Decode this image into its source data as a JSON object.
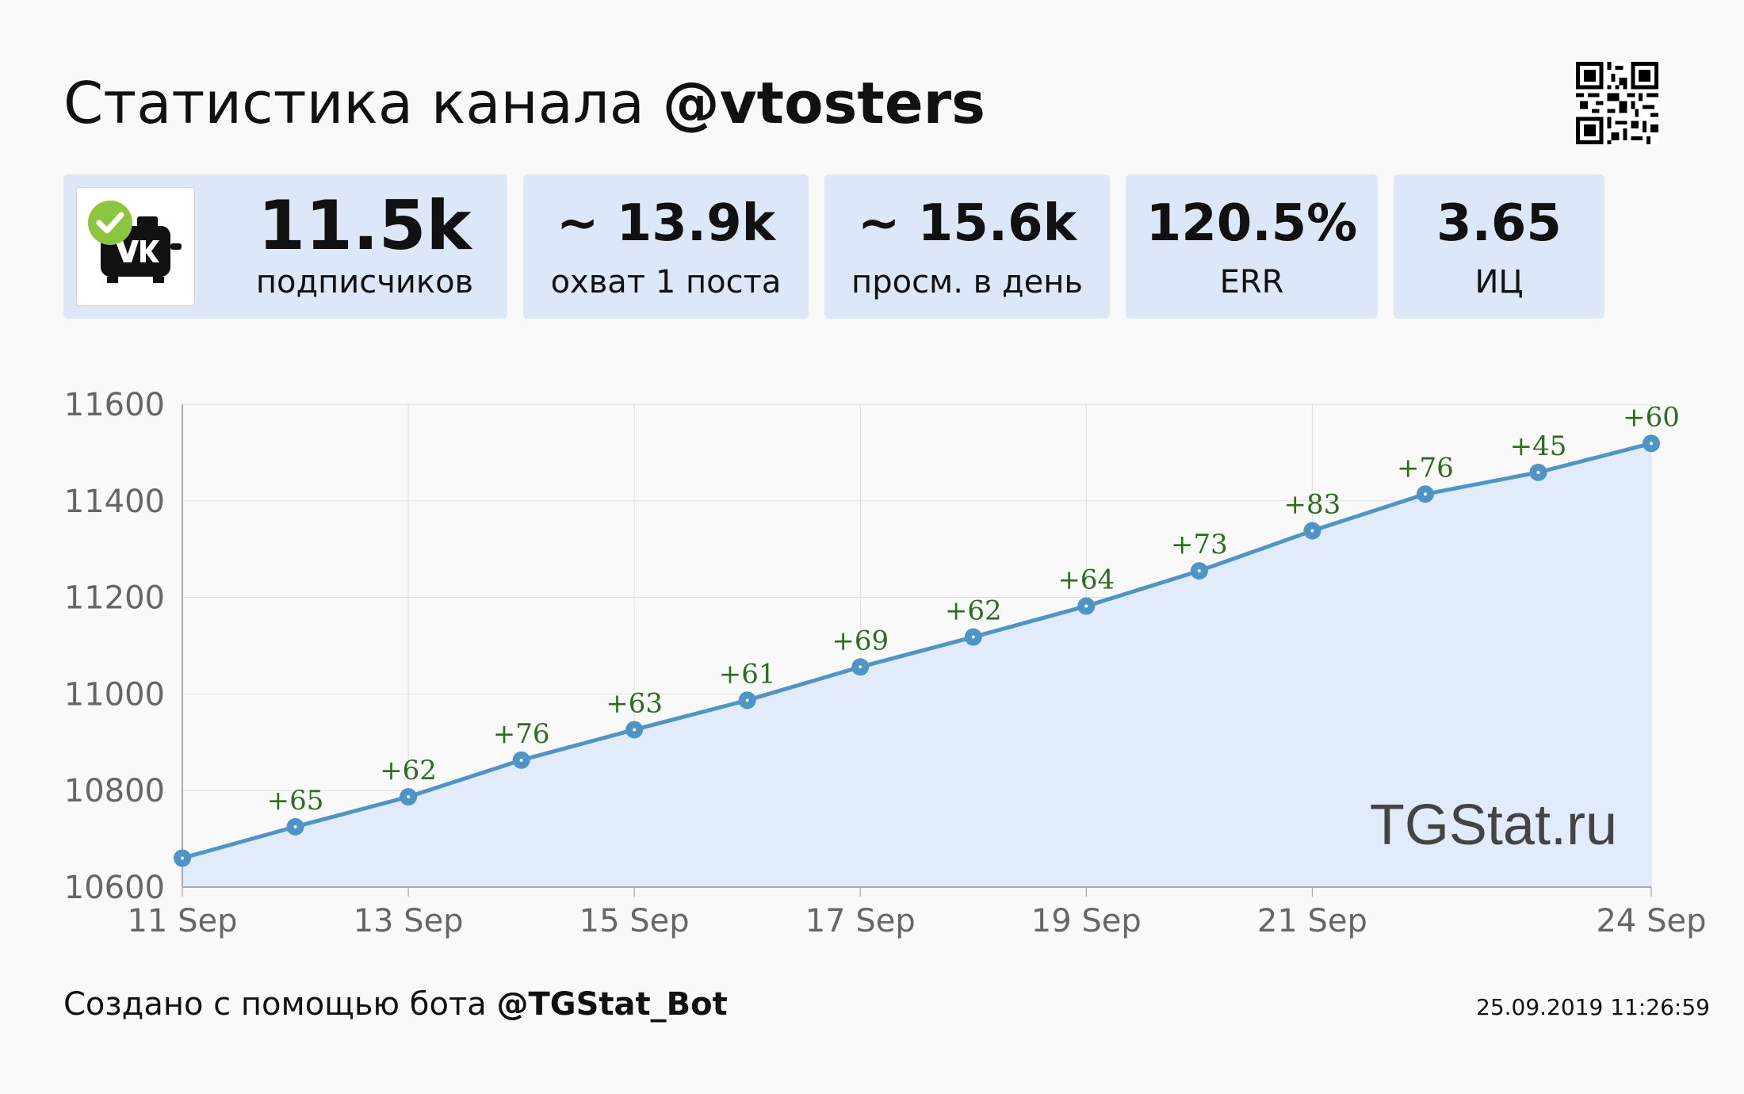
{
  "header": {
    "title_prefix": "Статистика канала",
    "channel": "@vtosters"
  },
  "stats": [
    {
      "value": "11.5k",
      "label": "подписчиков"
    },
    {
      "value": "~ 13.9k",
      "label": "охват 1 поста"
    },
    {
      "value": "~ 15.6k",
      "label": "просм. в день"
    },
    {
      "value": "120.5%",
      "label": "ERR"
    },
    {
      "value": "3.65",
      "label": "ИЦ"
    }
  ],
  "colors": {
    "card_bg": "#dce7f7",
    "line": "#4e94c4",
    "area": "#dfeaf9",
    "data_label": "#2e6b1e"
  },
  "chart_data": {
    "type": "area",
    "x": [
      "11 Sep",
      "12 Sep",
      "13 Sep",
      "14 Sep",
      "15 Sep",
      "16 Sep",
      "17 Sep",
      "18 Sep",
      "19 Sep",
      "20 Sep",
      "21 Sep",
      "22 Sep",
      "23 Sep",
      "24 Sep"
    ],
    "xtick_labels": [
      "11 Sep",
      "13 Sep",
      "15 Sep",
      "17 Sep",
      "19 Sep",
      "21 Sep",
      "24 Sep"
    ],
    "series": [
      {
        "values": [
          10660,
          10725,
          10787,
          10863,
          10926,
          10987,
          11056,
          11118,
          11182,
          11255,
          11338,
          11414,
          11459,
          11519
        ],
        "labels": [
          "",
          "+65",
          "+62",
          "+76",
          "+63",
          "+61",
          "+69",
          "+62",
          "+64",
          "+73",
          "+83",
          "+76",
          "+45",
          "+60"
        ]
      }
    ],
    "ylim": [
      10600,
      11600
    ],
    "yticks": [
      10600,
      10800,
      11000,
      11200,
      11400,
      11600
    ],
    "grid": true,
    "watermark": "TGStat.ru"
  },
  "footer": {
    "prefix": "Создано с помощью бота",
    "bot": "@TGStat_Bot",
    "timestamp": "25.09.2019 11:26:59"
  }
}
